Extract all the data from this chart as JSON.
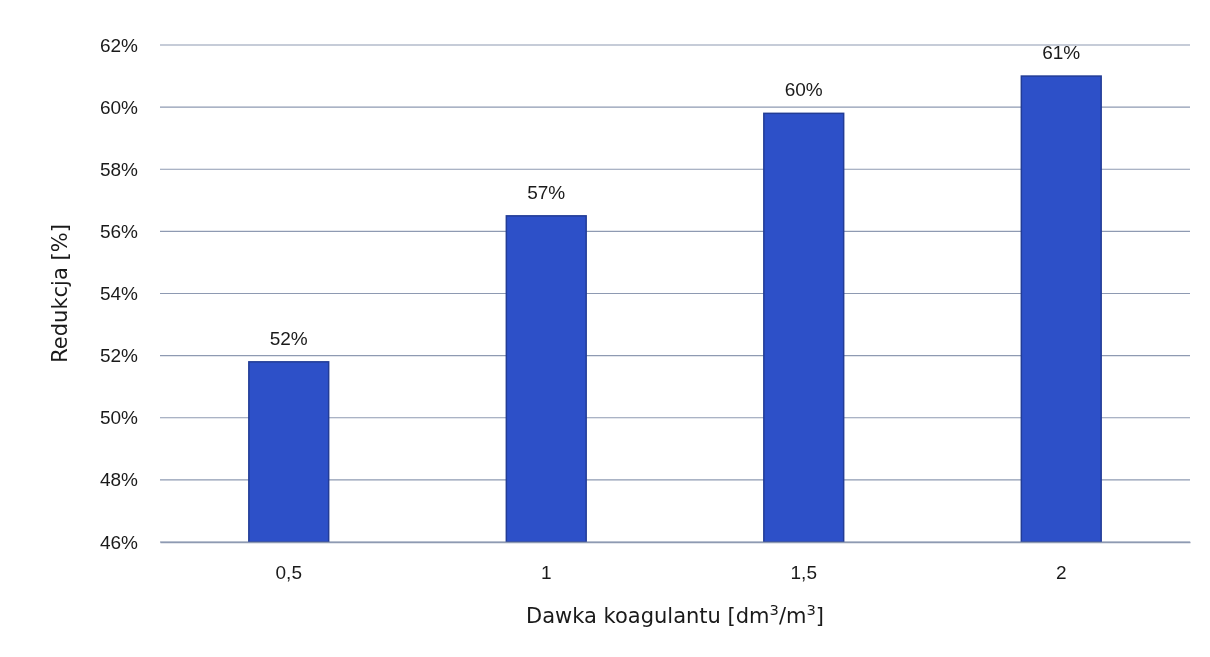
{
  "chart_data": {
    "type": "bar",
    "xlabel": "Dawka koagulantu [dm$^{3}$/m$^{3}$]",
    "ylabel": "Redukcja [%]",
    "categories": [
      "0,5",
      "1",
      "1,5",
      "2"
    ],
    "values": [
      51.8,
      56.5,
      59.8,
      61.0
    ],
    "value_labels": [
      "52%",
      "57%",
      "60%",
      "61%"
    ],
    "color": "#2d50c8",
    "ylim": [
      46,
      62
    ],
    "yticks": [
      {
        "value": 46,
        "label": "46%"
      },
      {
        "value": 48,
        "label": "48%"
      },
      {
        "value": 50,
        "label": "50%"
      },
      {
        "value": 52,
        "label": "52%"
      },
      {
        "value": 54,
        "label": "54%"
      },
      {
        "value": 56,
        "label": "56%"
      },
      {
        "value": 58,
        "label": "58%"
      },
      {
        "value": 60,
        "label": "60%"
      },
      {
        "value": 62,
        "label": "62%"
      }
    ],
    "grid": "y"
  }
}
